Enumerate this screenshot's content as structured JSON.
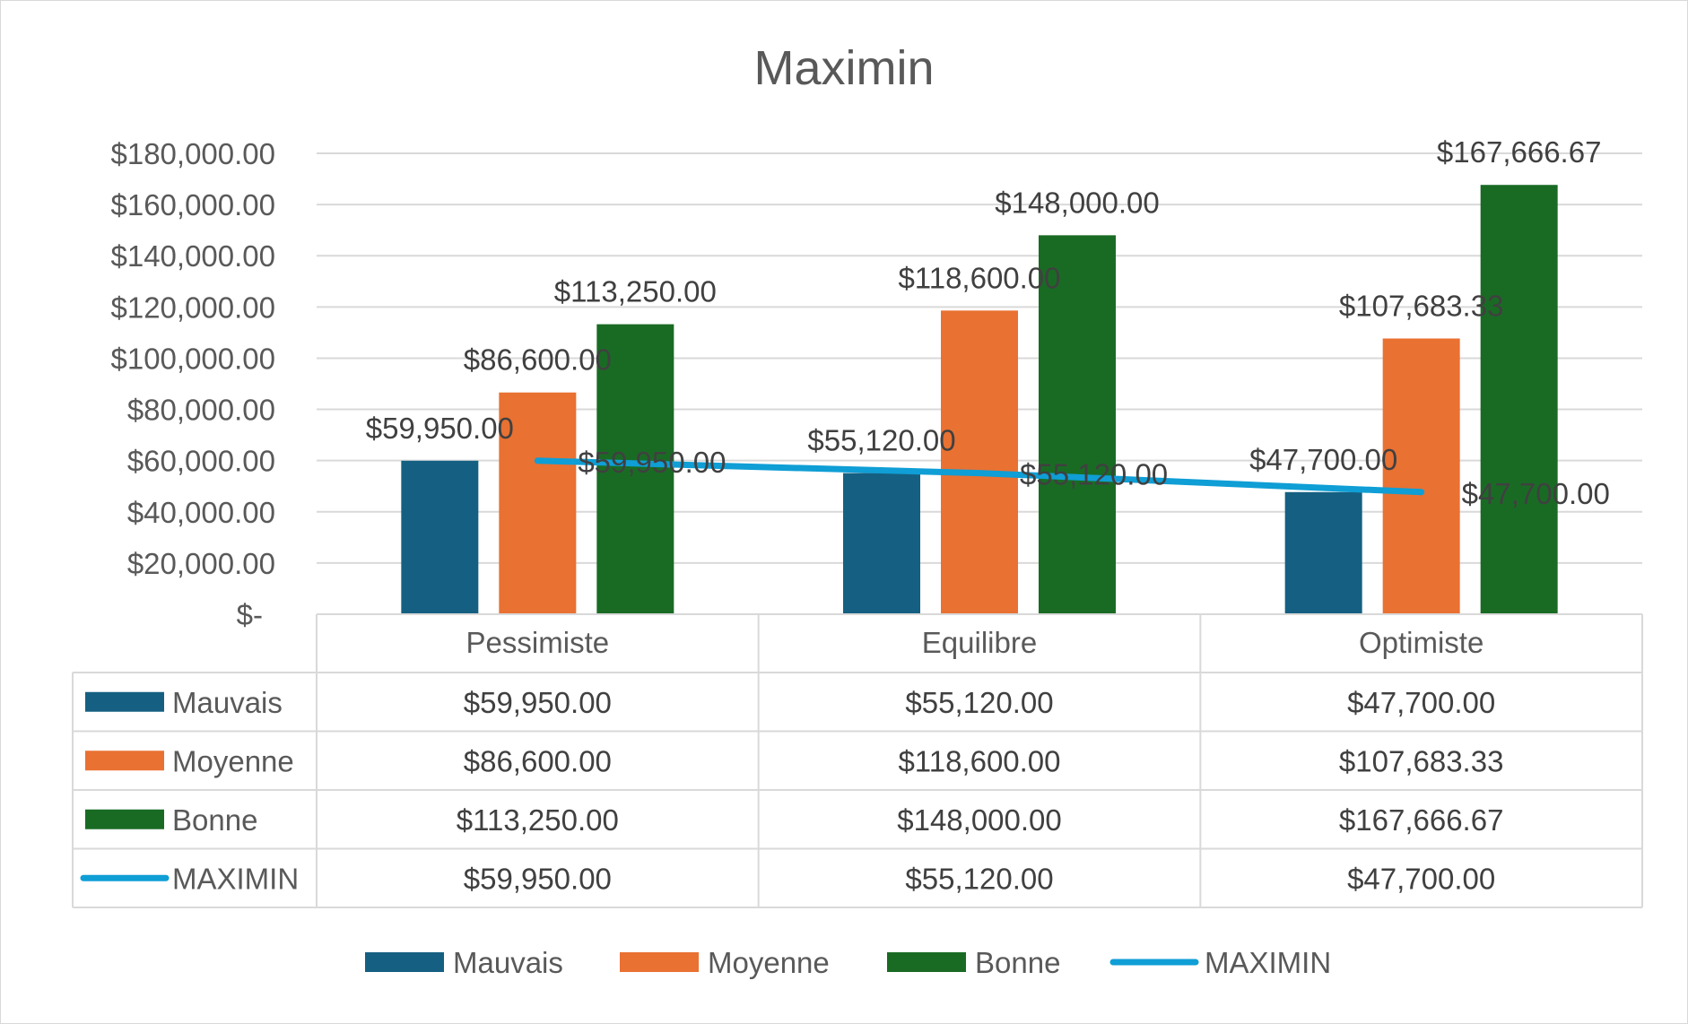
{
  "chart_data": {
    "type": "bar",
    "title": "Maximin",
    "categories": [
      "Pessimiste",
      "Equilibre",
      "Optimiste"
    ],
    "series": [
      {
        "name": "Mauvais",
        "kind": "bar",
        "color": "#156082",
        "values": [
          59950.0,
          55120.0,
          47700.0
        ],
        "labels": [
          "$59,950.00",
          "$55,120.00",
          "$47,700.00"
        ]
      },
      {
        "name": "Moyenne",
        "kind": "bar",
        "color": "#E97132",
        "values": [
          86600.0,
          118600.0,
          107683.33
        ],
        "labels": [
          "$86,600.00",
          "$118,600.00",
          "$107,683.33"
        ]
      },
      {
        "name": "Bonne",
        "kind": "bar",
        "color": "#196B24",
        "values": [
          113250.0,
          148000.0,
          167666.67
        ],
        "labels": [
          "$113,250.00",
          "$148,000.00",
          "$167,666.67"
        ]
      },
      {
        "name": "MAXIMIN",
        "kind": "line",
        "color": "#0F9ED5",
        "values": [
          59950.0,
          55120.0,
          47700.0
        ],
        "labels": [
          "$59,950.00",
          "$55,120.00",
          "$47,700.00"
        ]
      }
    ],
    "ylim": [
      0,
      180000
    ],
    "yticks": [
      0,
      20000,
      40000,
      60000,
      80000,
      100000,
      120000,
      140000,
      160000,
      180000
    ],
    "ytick_labels": [
      "$-",
      "$20,000.00",
      "$40,000.00",
      "$60,000.00",
      "$80,000.00",
      "$100,000.00",
      "$120,000.00",
      "$140,000.00",
      "$160,000.00",
      "$180,000.00"
    ],
    "grid": true,
    "legend": "bottom",
    "data_table": true
  }
}
